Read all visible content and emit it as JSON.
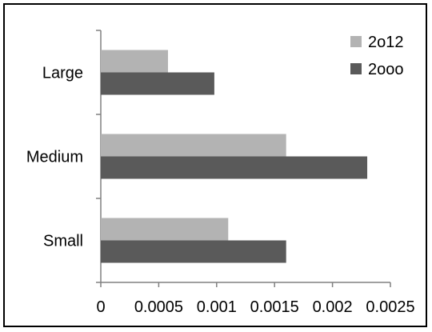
{
  "chart_data": {
    "type": "bar",
    "orientation": "horizontal",
    "categories": [
      "Small",
      "Medium",
      "Large"
    ],
    "series": [
      {
        "name": "2o12",
        "values": [
          0.0011,
          0.0016,
          0.00058
        ],
        "color": "#b3b3b3"
      },
      {
        "name": "2ooo",
        "values": [
          0.0016,
          0.0023,
          0.00098
        ],
        "color": "#5a5a5a"
      }
    ],
    "xlim": [
      0,
      0.0025
    ],
    "x_ticks": [
      "0",
      "0.0005",
      "0.001",
      "0.0015",
      "0.002",
      "0.0025"
    ],
    "x_tick_values": [
      0,
      0.0005,
      0.001,
      0.0015,
      0.002,
      0.0025
    ],
    "grid": false,
    "legend_position": "top-right"
  }
}
